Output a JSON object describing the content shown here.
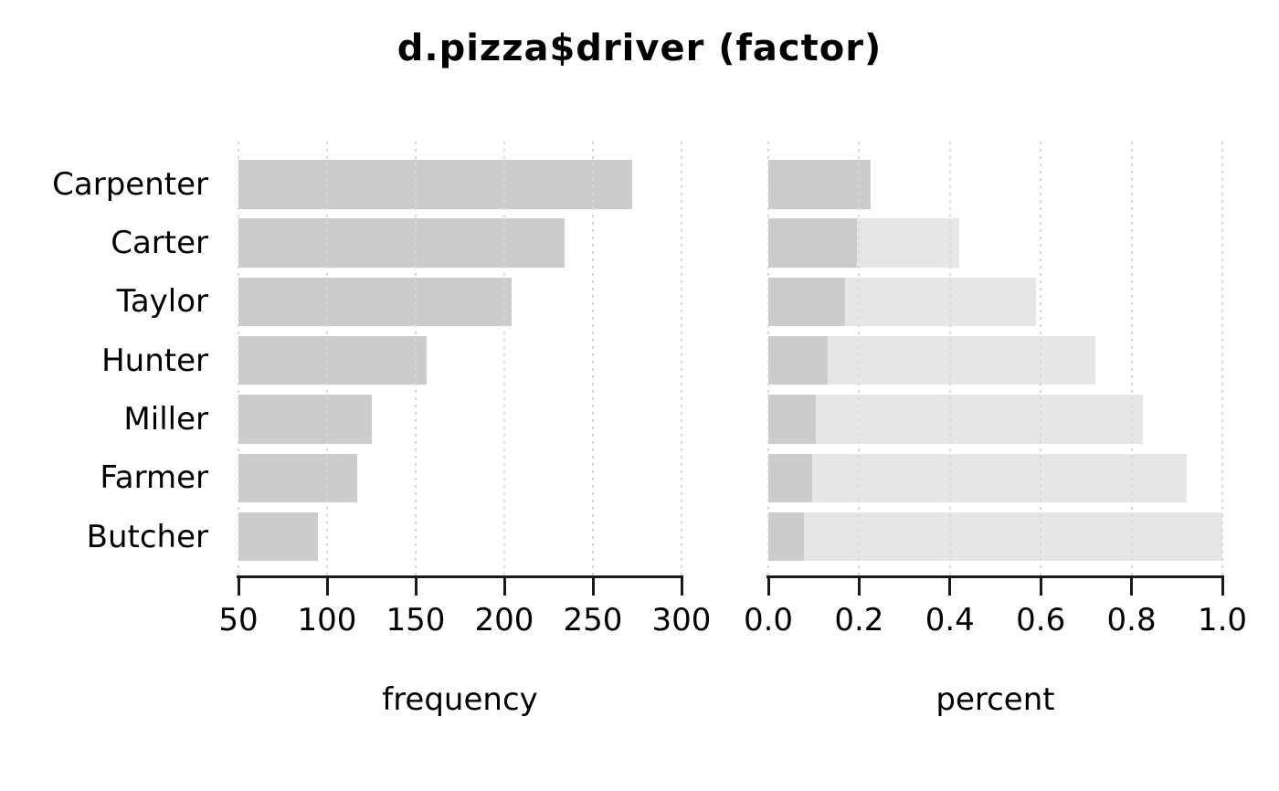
{
  "title": "d.pizza$driver (factor)",
  "colors": {
    "bar": "#cccccc",
    "cumulative_bar": "#e6e6e6",
    "gridline": "#d9d9d9",
    "axis": "#1a1a1a",
    "text": "#000000",
    "background": "#ffffff"
  },
  "chart_data": [
    {
      "type": "bar",
      "orientation": "horizontal",
      "panel": "frequency",
      "categories": [
        "Carpenter",
        "Carter",
        "Taylor",
        "Hunter",
        "Miller",
        "Farmer",
        "Butcher"
      ],
      "values": [
        272,
        234,
        204,
        156,
        125,
        117,
        95
      ],
      "xlabel": "frequency",
      "xlim": [
        50,
        300
      ],
      "xtick_labels": [
        "50",
        "100",
        "150",
        "200",
        "250",
        "300"
      ],
      "grid": true,
      "note": "bars clipped at left axis limit 50"
    },
    {
      "type": "bar",
      "orientation": "horizontal",
      "panel": "percent",
      "categories": [
        "Carpenter",
        "Carter",
        "Taylor",
        "Hunter",
        "Miller",
        "Farmer",
        "Butcher"
      ],
      "series": [
        {
          "name": "percent",
          "values": [
            0.226,
            0.195,
            0.17,
            0.13,
            0.104,
            0.097,
            0.079
          ]
        },
        {
          "name": "cumulative percent",
          "values": [
            0.226,
            0.421,
            0.59,
            0.72,
            0.824,
            0.921,
            1.0
          ]
        }
      ],
      "xlabel": "percent",
      "xlim": [
        0.0,
        1.0
      ],
      "xtick_labels": [
        "0.0",
        "0.2",
        "0.4",
        "0.6",
        "0.8",
        "1.0"
      ],
      "grid": true
    }
  ]
}
